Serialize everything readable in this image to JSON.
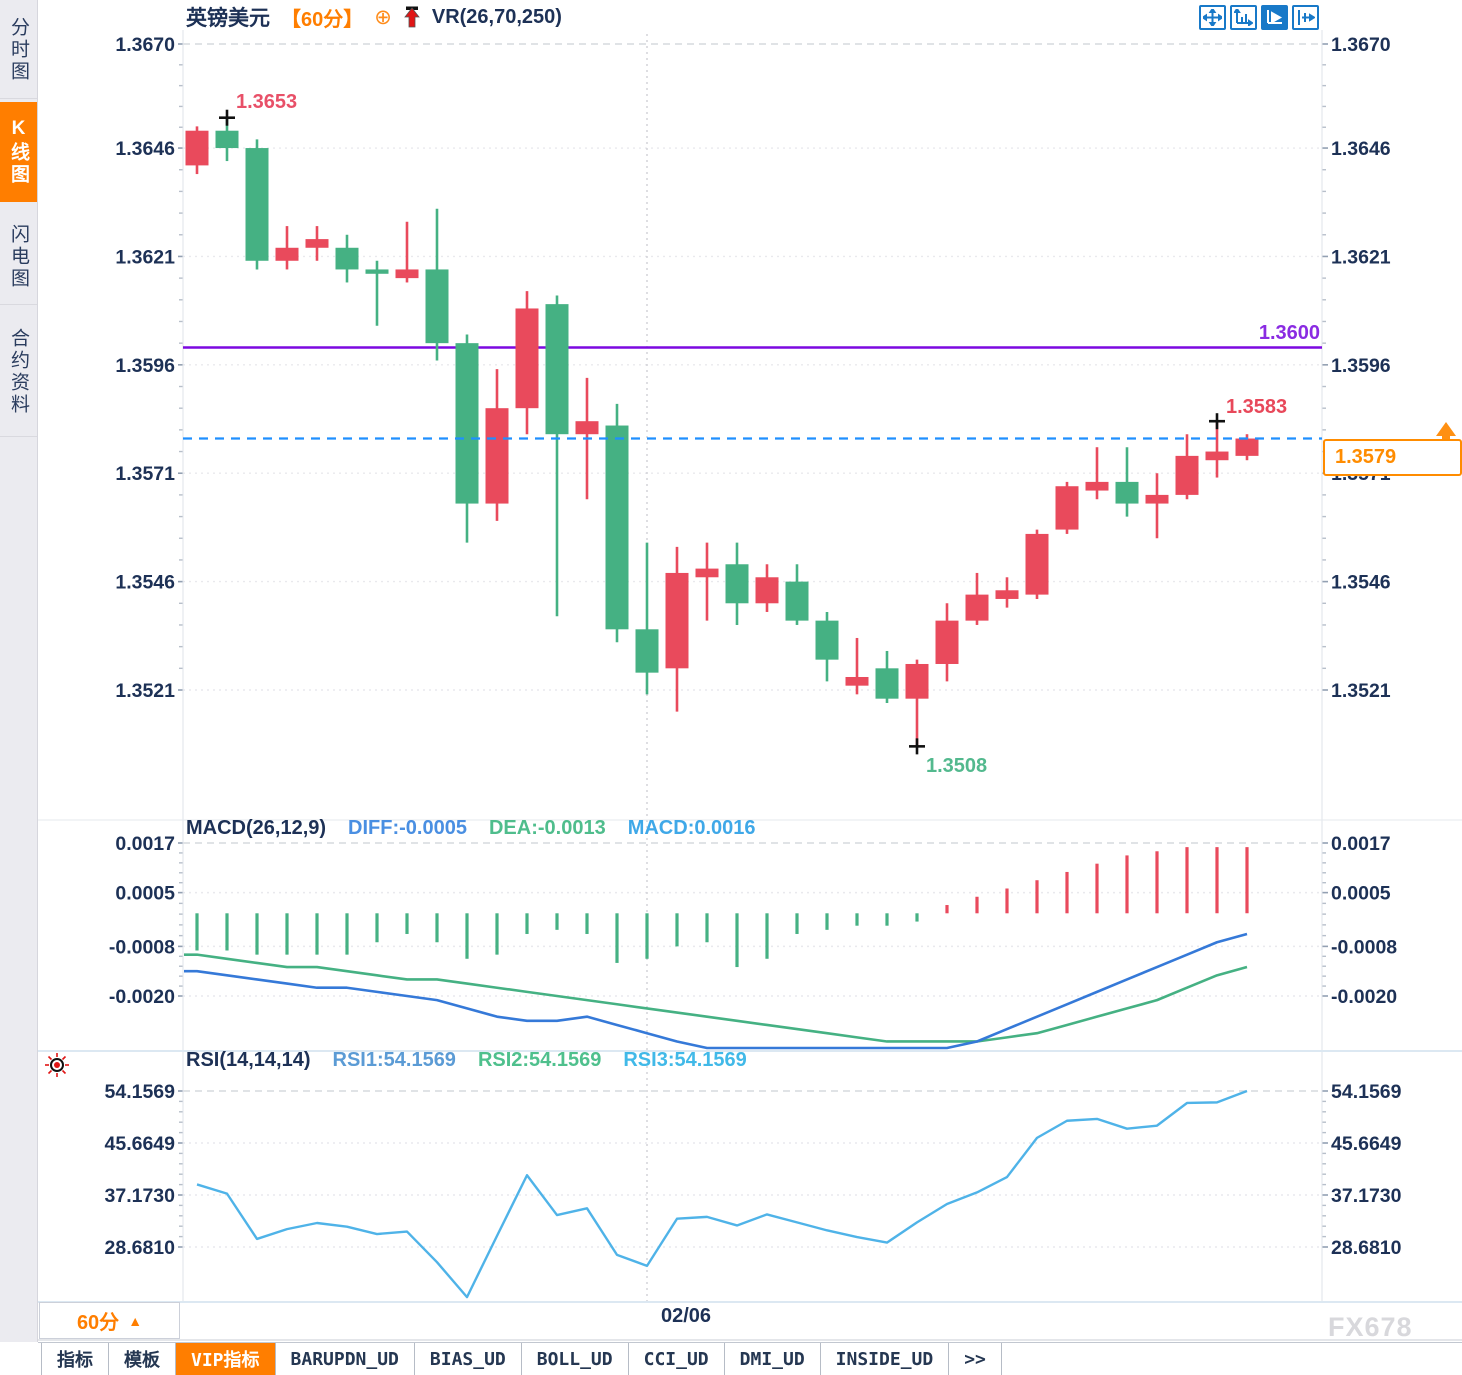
{
  "watermark": "FX678",
  "colors": {
    "accent_orange": "#ff7e00",
    "up_red": "#e94a5c",
    "down_green": "#45b183",
    "hline_purple": "#7c08e0",
    "dashed_blue": "#1f8fff",
    "diff_line": "#3579d8",
    "dea_line": "#45b183",
    "rsi_line": "#4fb3e8",
    "axis_text": "#1d3156",
    "toolbar_blue": "#1879c8"
  },
  "sidebar": {
    "tabs": [
      {
        "label": "分时图",
        "active": false
      },
      {
        "label": "K线图",
        "active": true
      },
      {
        "label": "闪电图",
        "active": false
      },
      {
        "label": "合约资料",
        "active": false
      }
    ]
  },
  "header": {
    "symbol": "英镑美元",
    "period": "【60分】",
    "circle_plus_icon": "circle-plus-icon",
    "signal_icon": "red-up-arrow-icon",
    "vr": "VR(26,70,250)"
  },
  "toolbar": {
    "icons": [
      "move-crosshair-icon",
      "axis-scale-icon",
      "axis-pointer-icon",
      "axis-shift-icon"
    ],
    "active_index": 2
  },
  "price_panel": {
    "axis_labels": [
      "1.3670",
      "1.3646",
      "1.3621",
      "1.3596",
      "1.3571",
      "1.3546",
      "1.3521"
    ],
    "annotations": {
      "swing_high": "1.3653",
      "swing_low": "1.3508",
      "recent_high": "1.3583",
      "hline_label": "1.3600",
      "last_price": "1.3579"
    }
  },
  "macd_panel": {
    "title": "MACD(26,12,9)",
    "diff_label": "DIFF:-0.0005",
    "dea_label": "DEA:-0.0013",
    "macd_label": "MACD:0.0016",
    "axis_labels": [
      "0.0017",
      "0.0005",
      "-0.0008",
      "-0.0020"
    ]
  },
  "rsi_panel": {
    "title": "RSI(14,14,14)",
    "rsi1_label": "RSI1:54.1569",
    "rsi2_label": "RSI2:54.1569",
    "rsi3_label": "RSI3:54.1569",
    "axis_labels": [
      "54.1569",
      "45.6649",
      "37.1730",
      "28.6810"
    ]
  },
  "bottom": {
    "period_button": "60分",
    "date_label": "02/06",
    "tabs": [
      {
        "label": "指标",
        "active": false
      },
      {
        "label": "模板",
        "active": false
      },
      {
        "label": "VIP指标",
        "active": true
      },
      {
        "label": "BARUPDN_UD",
        "active": false
      },
      {
        "label": "BIAS_UD",
        "active": false
      },
      {
        "label": "BOLL_UD",
        "active": false
      },
      {
        "label": "CCI_UD",
        "active": false
      },
      {
        "label": "DMI_UD",
        "active": false
      },
      {
        "label": "INSIDE_UD",
        "active": false
      },
      {
        "label": ">>",
        "active": false
      }
    ]
  },
  "chart_data": [
    {
      "type": "candlestick",
      "title": "英镑美元 60分",
      "up_color": "#e94a5c",
      "down_color": "#45b183",
      "y_axis": [
        1.367,
        1.3646,
        1.3621,
        1.3596,
        1.3571,
        1.3546,
        1.3521
      ],
      "hline": 1.36,
      "last_price": 1.3579,
      "date_tick": "02/06",
      "markers": [
        {
          "index": 2,
          "price": 1.3653
        },
        {
          "index": 25,
          "price": 1.3508
        },
        {
          "index": 35,
          "price": 1.3583
        }
      ],
      "ohlc": [
        [
          1.3642,
          1.3651,
          1.364,
          1.365
        ],
        [
          1.365,
          1.3653,
          1.3643,
          1.3646
        ],
        [
          1.3646,
          1.3648,
          1.3618,
          1.362
        ],
        [
          1.362,
          1.3628,
          1.3618,
          1.3623
        ],
        [
          1.3623,
          1.3628,
          1.362,
          1.3625
        ],
        [
          1.3623,
          1.3626,
          1.3615,
          1.3618
        ],
        [
          1.3618,
          1.362,
          1.3605,
          1.3617
        ],
        [
          1.3616,
          1.3629,
          1.3615,
          1.3618
        ],
        [
          1.3618,
          1.3632,
          1.3597,
          1.3601
        ],
        [
          1.3601,
          1.3603,
          1.3555,
          1.3564
        ],
        [
          1.3564,
          1.3595,
          1.356,
          1.3586
        ],
        [
          1.3586,
          1.3613,
          1.358,
          1.3609
        ],
        [
          1.361,
          1.3612,
          1.3538,
          1.358
        ],
        [
          1.358,
          1.3593,
          1.3565,
          1.3583
        ],
        [
          1.3582,
          1.3587,
          1.3532,
          1.3535
        ],
        [
          1.3535,
          1.3555,
          1.352,
          1.3525
        ],
        [
          1.3526,
          1.3554,
          1.3516,
          1.3548
        ],
        [
          1.3547,
          1.3555,
          1.3537,
          1.3549
        ],
        [
          1.355,
          1.3555,
          1.3536,
          1.3541
        ],
        [
          1.3541,
          1.355,
          1.3539,
          1.3547
        ],
        [
          1.3546,
          1.355,
          1.3536,
          1.3537
        ],
        [
          1.3537,
          1.3539,
          1.3523,
          1.3528
        ],
        [
          1.3522,
          1.3533,
          1.352,
          1.3524
        ],
        [
          1.3526,
          1.353,
          1.3518,
          1.3519
        ],
        [
          1.3519,
          1.3528,
          1.3508,
          1.3527
        ],
        [
          1.3527,
          1.3541,
          1.3523,
          1.3537
        ],
        [
          1.3537,
          1.3548,
          1.3536,
          1.3543
        ],
        [
          1.3542,
          1.3547,
          1.354,
          1.3544
        ],
        [
          1.3543,
          1.3558,
          1.3542,
          1.3557
        ],
        [
          1.3558,
          1.3569,
          1.3557,
          1.3568
        ],
        [
          1.3567,
          1.3577,
          1.3565,
          1.3569
        ],
        [
          1.3569,
          1.3577,
          1.3561,
          1.3564
        ],
        [
          1.3564,
          1.3571,
          1.3556,
          1.3566
        ],
        [
          1.3566,
          1.358,
          1.3565,
          1.3575
        ],
        [
          1.3574,
          1.3583,
          1.357,
          1.3576
        ],
        [
          1.3575,
          1.358,
          1.3574,
          1.3579
        ]
      ]
    },
    {
      "type": "bar",
      "title": "MACD(26,12,9)",
      "diff_value": -0.0005,
      "dea_value": -0.0013,
      "macd_value": 0.0016,
      "y_axis": [
        0.0017,
        0.0005,
        -0.0008,
        -0.002
      ],
      "histogram": [
        -0.0009,
        -0.0009,
        -0.001,
        -0.001,
        -0.001,
        -0.001,
        -0.0007,
        -0.0005,
        -0.0007,
        -0.0011,
        -0.001,
        -0.0005,
        -0.0004,
        -0.0005,
        -0.0012,
        -0.0011,
        -0.0008,
        -0.0007,
        -0.0013,
        -0.0011,
        -0.0005,
        -0.0004,
        -0.0003,
        -0.0003,
        -0.0002,
        0.0002,
        0.0004,
        0.0006,
        0.0008,
        0.001,
        0.0012,
        0.0014,
        0.0015,
        0.0016,
        0.0016,
        0.0016
      ],
      "diff": [
        -0.0014,
        -0.0015,
        -0.0016,
        -0.0017,
        -0.0018,
        -0.0018,
        -0.0019,
        -0.002,
        -0.0021,
        -0.0023,
        -0.0025,
        -0.0026,
        -0.0026,
        -0.0025,
        -0.0027,
        -0.0029,
        -0.0031,
        -0.0033,
        -0.0034,
        -0.0034,
        -0.0035,
        -0.0035,
        -0.0035,
        -0.0035,
        -0.0034,
        -0.0033,
        -0.0031,
        -0.0028,
        -0.0025,
        -0.0022,
        -0.0019,
        -0.0016,
        -0.0013,
        -0.001,
        -0.0007,
        -0.0005
      ],
      "dea": [
        -0.001,
        -0.0011,
        -0.0012,
        -0.0013,
        -0.0013,
        -0.0014,
        -0.0015,
        -0.0016,
        -0.0016,
        -0.0017,
        -0.0018,
        -0.0019,
        -0.002,
        -0.0021,
        -0.0022,
        -0.0023,
        -0.0024,
        -0.0025,
        -0.0026,
        -0.0027,
        -0.0028,
        -0.0029,
        -0.003,
        -0.0031,
        -0.0031,
        -0.0031,
        -0.0031,
        -0.003,
        -0.0029,
        -0.0027,
        -0.0025,
        -0.0023,
        -0.0021,
        -0.0018,
        -0.0015,
        -0.0013
      ]
    },
    {
      "type": "line",
      "title": "RSI(14,14,14)",
      "rsi1": 54.1569,
      "rsi2": 54.1569,
      "rsi3": 54.1569,
      "y_axis": [
        54.1569,
        45.6649,
        37.173,
        28.681
      ],
      "values": [
        38.9,
        37.4,
        30.0,
        31.6,
        32.6,
        32.0,
        30.8,
        31.2,
        26.2,
        20.5,
        30.5,
        40.4,
        33.9,
        35.0,
        27.4,
        25.6,
        33.3,
        33.6,
        32.2,
        34.0,
        32.7,
        31.4,
        30.3,
        29.4,
        32.7,
        35.7,
        37.6,
        40.1,
        46.5,
        49.3,
        49.6,
        48.0,
        48.5,
        52.2,
        52.3,
        54.16
      ]
    }
  ]
}
